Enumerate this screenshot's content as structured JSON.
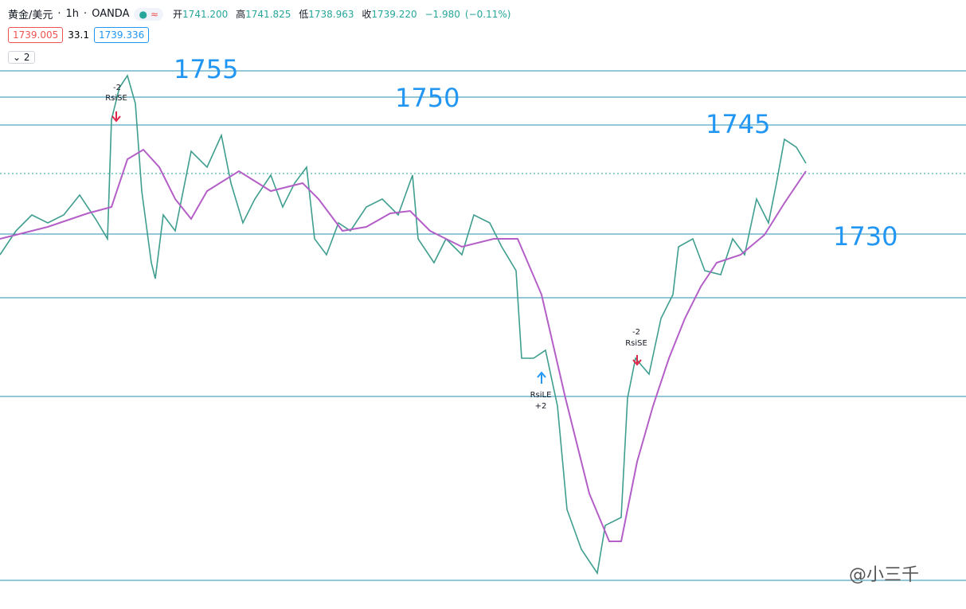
{
  "header": {
    "symbol": "黄金/美元",
    "interval": "1h",
    "broker": "OANDA",
    "status_icon": "≈",
    "open_label": "开",
    "open": "1741.200",
    "high_label": "高",
    "high": "1741.825",
    "low_label": "低",
    "low": "1738.963",
    "close_label": "收",
    "close": "1739.220",
    "change": "−1.980",
    "change_pct": "(−0.11%)"
  },
  "trade": {
    "sell": "1739.005",
    "spread": "33.1",
    "buy": "1739.336"
  },
  "indicators": "2",
  "levels": [
    "1755",
    "1750",
    "1745",
    "1730"
  ],
  "signals": [
    {
      "qty": "-2",
      "name": "RsiSE"
    },
    {
      "qty": "+2",
      "name": "RsiLE"
    },
    {
      "qty": "-2",
      "name": "RsiSE"
    }
  ],
  "watermark": "@小三千"
}
